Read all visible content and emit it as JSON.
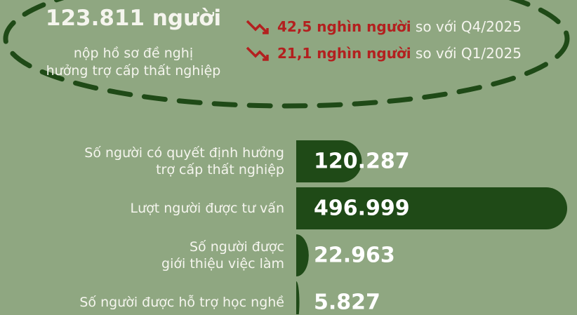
{
  "summary": {
    "headline": "123.811 người",
    "subtitle": "nộp hồ sơ đề nghị\nhưởng trợ cấp thất nghiệp",
    "comparisons": [
      {
        "amount": "42,5 nghìn người",
        "text": "so với Q4/2025"
      },
      {
        "amount": "21,1 nghìn người",
        "text": "so với Q1/2025"
      }
    ]
  },
  "chart_data": {
    "type": "bar",
    "orientation": "horizontal",
    "categories": [
      "Số người có quyết định hưởng\ntrợ cấp thất nghiệp",
      "Lượt người được tư vấn",
      "Số người được\ngiới thiệu việc làm",
      "Số người được hỗ trợ học nghề"
    ],
    "values": [
      120287,
      496999,
      22963,
      5827
    ],
    "value_labels": [
      "120.287",
      "496.999",
      "22.963",
      "5.827"
    ],
    "color": "#1f4a17"
  }
}
